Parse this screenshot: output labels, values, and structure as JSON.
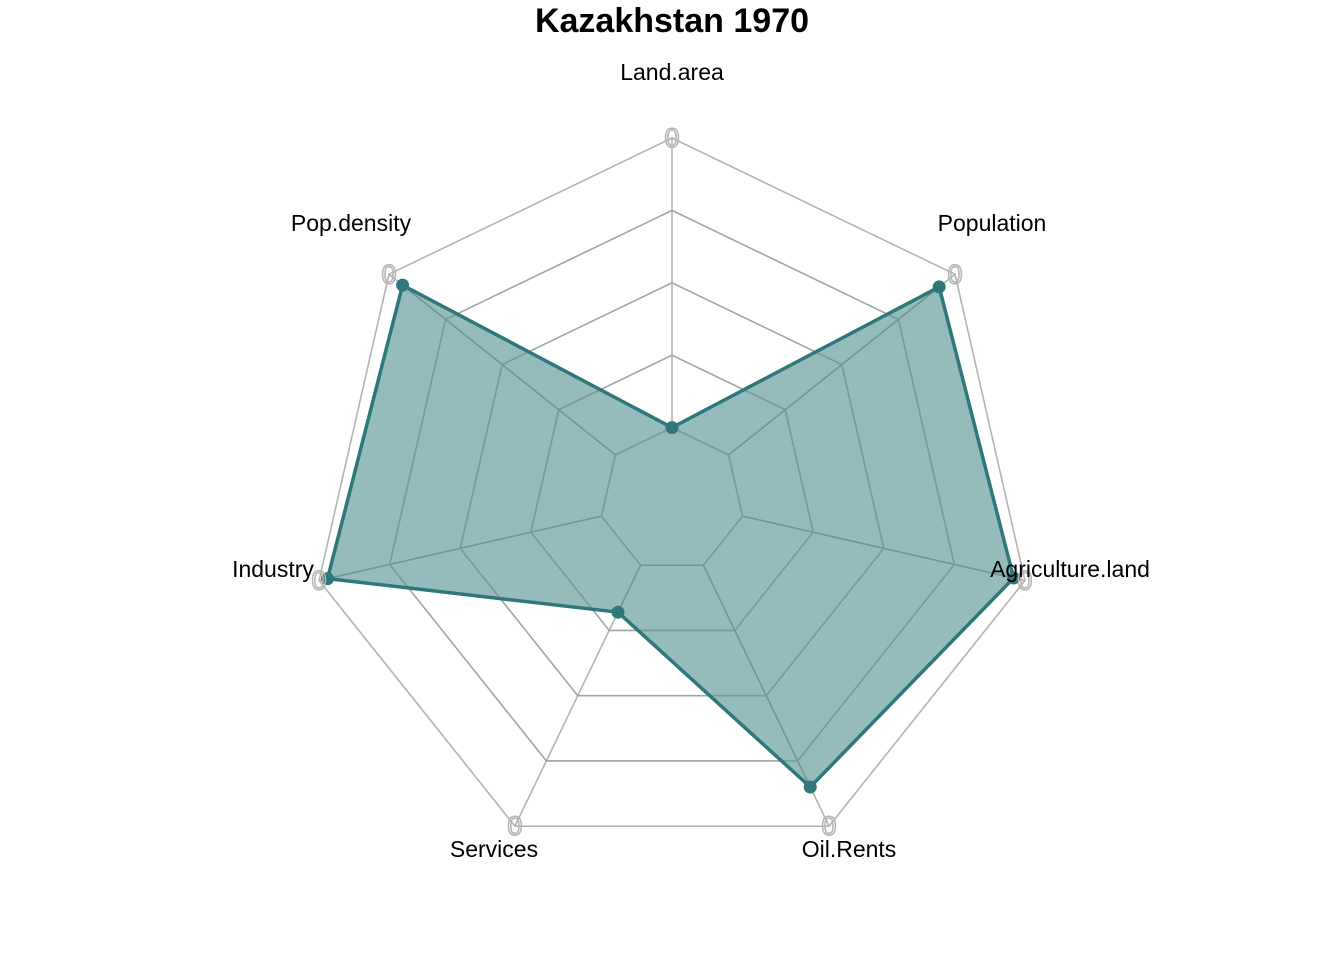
{
  "chart_data": {
    "type": "radar",
    "title": "Kazakhstan 1970",
    "axes": [
      "Land.area",
      "Population",
      "Agriculture.land",
      "Oil.Rents",
      "Services",
      "Industry",
      "Pop.density"
    ],
    "axis_max_labels": [
      "0",
      "0",
      "0",
      "0",
      "0",
      "0",
      "0"
    ],
    "series": [
      {
        "values": [
          0.0,
          0.93,
          0.96,
          0.85,
          0.18,
          0.97,
          0.94
        ]
      }
    ],
    "range": [
      0,
      1
    ],
    "grid_levels": 5,
    "grid": true,
    "legend": "none"
  },
  "colors": {
    "fill": "#2e777a",
    "fill_opacity": 0.5,
    "line": "#2e777a",
    "grid": "#b3b3b3",
    "inner_grid": "#7f9e9f"
  }
}
